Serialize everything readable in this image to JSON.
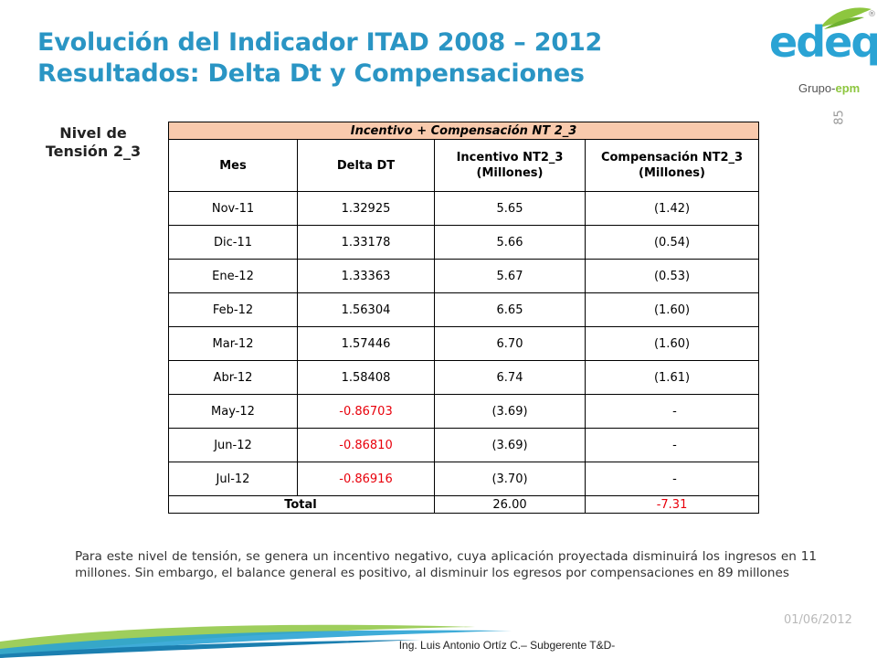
{
  "slide": {
    "title_line1": "Evolución del Indicador ITAD 2008 – 2012",
    "title_line2": "Resultados: Delta Dt y Compensaciones",
    "page_number": "85",
    "side_label_line1": "Nivel de",
    "side_label_line2": "Tensión 2_3",
    "paragraph": "Para este nivel de tensión, se genera un incentivo negativo, cuya aplicación proyectada disminuirá los ingresos en 11 millones. Sin embargo, el balance general es positivo, al disminuir los egresos por compensaciones en 89 millones",
    "date": "01/06/2012",
    "author": "Ing. Luis Antonio Ortíz C.– Subgerente T&D-",
    "colors": {
      "title": "#2a95c4",
      "header_fill": "#f9caad",
      "negative": "#e8000b",
      "logo_blue": "#2aa3d4",
      "logo_green": "#8dc63f"
    }
  },
  "logo": {
    "brand": "edeq",
    "group": "Grupo-",
    "group_suffix": "epm",
    "registered": "®"
  },
  "table": {
    "caption": "Incentivo + Compensación NT 2_3",
    "headers": {
      "mes": "Mes",
      "delta": "Delta DT",
      "incentivo": "Incentivo NT2_3 (Millones)",
      "compensacion": "Compensación NT2_3 (Millones)"
    },
    "rows": [
      {
        "mes": "Nov-11",
        "delta": "1.32925",
        "incentivo": "5.65",
        "compensacion": "(1.42)"
      },
      {
        "mes": "Dic-11",
        "delta": "1.33178",
        "incentivo": "5.66",
        "compensacion": "(0.54)"
      },
      {
        "mes": "Ene-12",
        "delta": "1.33363",
        "incentivo": "5.67",
        "compensacion": "(0.53)"
      },
      {
        "mes": "Feb-12",
        "delta": "1.56304",
        "incentivo": "6.65",
        "compensacion": "(1.60)"
      },
      {
        "mes": "Mar-12",
        "delta": "1.57446",
        "incentivo": "6.70",
        "compensacion": "(1.60)"
      },
      {
        "mes": "Abr-12",
        "delta": "1.58408",
        "incentivo": "6.74",
        "compensacion": "(1.61)"
      },
      {
        "mes": "May-12",
        "delta": "-0.86703",
        "incentivo": "(3.69)",
        "compensacion": "-"
      },
      {
        "mes": "Jun-12",
        "delta": "-0.86810",
        "incentivo": "(3.69)",
        "compensacion": "-"
      },
      {
        "mes": "Jul-12",
        "delta": "-0.86916",
        "incentivo": "(3.70)",
        "compensacion": "-"
      }
    ],
    "total": {
      "label": "Total",
      "incentivo": "26.00",
      "compensacion": "-7.31"
    }
  }
}
